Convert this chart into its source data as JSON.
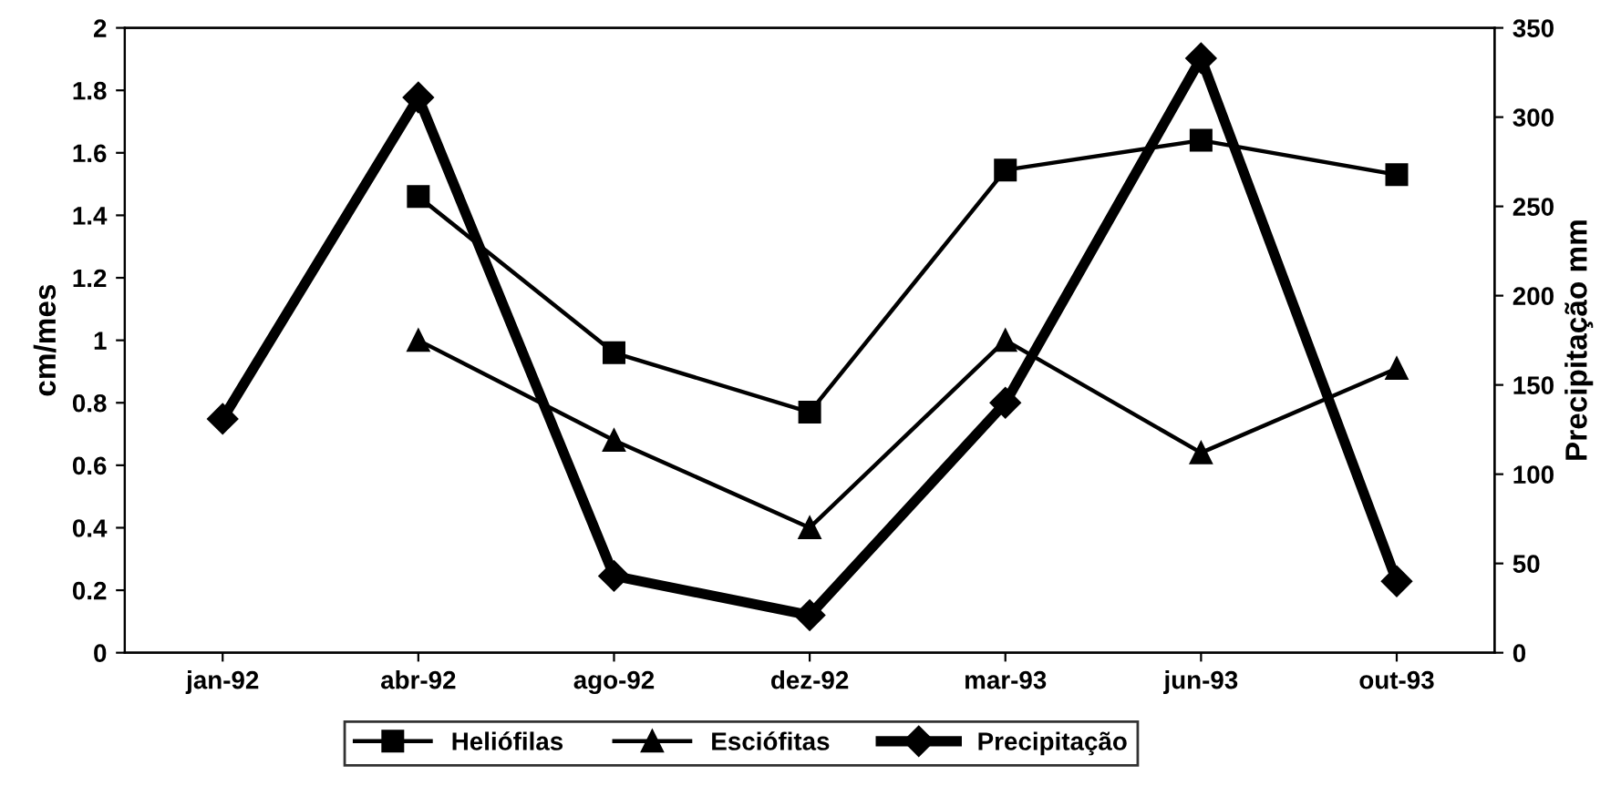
{
  "chart_data": {
    "type": "line",
    "categories": [
      "jan-92",
      "abr-92",
      "ago-92",
      "dez-92",
      "mar-93",
      "jun-93",
      "out-93"
    ],
    "ylabel": "cm/mes",
    "y2label": "Precipitação mm",
    "ylim": [
      0,
      2
    ],
    "yticks": [
      0,
      0.2,
      0.4,
      0.6,
      0.8,
      1,
      1.2,
      1.4,
      1.6,
      1.8,
      2
    ],
    "y2lim": [
      0,
      350
    ],
    "y2ticks": [
      0,
      50,
      100,
      150,
      200,
      250,
      300,
      350
    ],
    "grid": false,
    "legend": "bottom",
    "line_style": "solid",
    "series": [
      {
        "name": "Heliófilas",
        "color": "#000000",
        "marker": "square",
        "values": [
          null,
          1.46,
          0.96,
          0.77,
          1.545,
          1.64,
          1.53
        ]
      },
      {
        "name": "Esciófitas",
        "color": "#000000",
        "marker": "triangle",
        "values": [
          null,
          1.0,
          0.68,
          0.4,
          1.0,
          0.64,
          0.91
        ]
      },
      {
        "name": "Precipitação",
        "color": "#000000",
        "marker": "diamond",
        "axis": "y2",
        "values": [
          131,
          311,
          43,
          21,
          140,
          333,
          40
        ]
      }
    ]
  }
}
